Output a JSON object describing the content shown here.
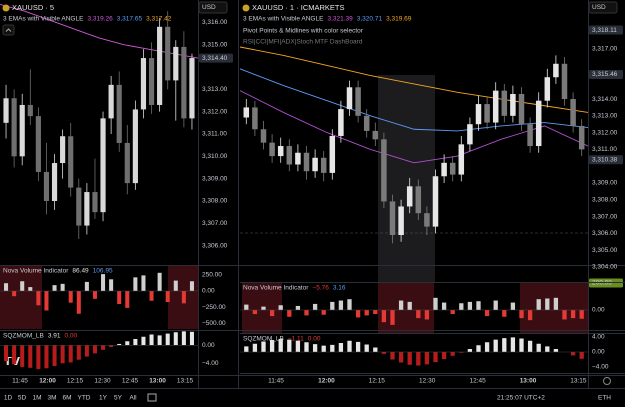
{
  "panes": [
    {
      "symbol": "XAUUSD · 5",
      "currency": "USD",
      "ema_title": "3 EMAs with Visible ANGLE",
      "ema_values": [
        {
          "text": "3,319.26",
          "color": "#d05ad6"
        },
        {
          "text": "3,317.65",
          "color": "#5b9cf6"
        },
        {
          "text": "3,317.42",
          "color": "#f5a623"
        }
      ],
      "extra_indicators": [],
      "price": {
        "ylim": [
          3305.0,
          3317.0
        ],
        "yticks": [
          {
            "value": 3306,
            "label": "3,306.00"
          },
          {
            "value": 3307,
            "label": "3,307.00"
          },
          {
            "value": 3308,
            "label": "3,308.00"
          },
          {
            "value": 3309,
            "label": "3,309.00"
          },
          {
            "value": 3310,
            "label": "3,310.00"
          },
          {
            "value": 3311,
            "label": "3,311.00"
          },
          {
            "value": 3312,
            "label": "3,312.00"
          },
          {
            "value": 3313,
            "label": "3,313.00"
          },
          {
            "value": 3315,
            "label": "3,315.00"
          },
          {
            "value": 3316,
            "label": "3,316.00"
          }
        ],
        "price_labels": [
          {
            "value": 3314.4,
            "label": "3,314.40",
            "bg": "#2a2e39"
          }
        ],
        "colors": {
          "up": "#d9d9d9",
          "down": "#6f6f6f"
        },
        "candles": [
          [
            3311.5,
            3313.2,
            3310.8,
            3312.6
          ],
          [
            3312.6,
            3313.0,
            3309.5,
            3310.0
          ],
          [
            3310.0,
            3312.8,
            3309.6,
            3312.3
          ],
          [
            3312.3,
            3313.9,
            3311.4,
            3311.8
          ],
          [
            3311.8,
            3312.2,
            3308.9,
            3309.3
          ],
          [
            3309.3,
            3310.6,
            3307.4,
            3308.0
          ],
          [
            3308.0,
            3310.1,
            3307.6,
            3309.7
          ],
          [
            3309.7,
            3311.2,
            3309.0,
            3310.9
          ],
          [
            3310.9,
            3311.5,
            3308.2,
            3308.6
          ],
          [
            3308.6,
            3309.0,
            3306.3,
            3306.9
          ],
          [
            3306.9,
            3308.8,
            3306.5,
            3308.4
          ],
          [
            3308.4,
            3309.9,
            3307.2,
            3307.5
          ],
          [
            3307.5,
            3312.0,
            3307.1,
            3311.7
          ],
          [
            3311.7,
            3313.6,
            3311.0,
            3313.2
          ],
          [
            3313.2,
            3313.8,
            3310.2,
            3310.6
          ],
          [
            3310.6,
            3311.4,
            3308.3,
            3308.8
          ],
          [
            3308.8,
            3312.5,
            3308.5,
            3312.1
          ],
          [
            3312.1,
            3314.8,
            3311.7,
            3314.4
          ],
          [
            3314.4,
            3315.1,
            3311.9,
            3312.3
          ],
          [
            3312.3,
            3316.2,
            3312.0,
            3315.8
          ],
          [
            3315.8,
            3316.5,
            3313.0,
            3313.4
          ],
          [
            3313.4,
            3315.2,
            3311.6,
            3314.9
          ],
          [
            3314.9,
            3315.6,
            3311.3,
            3311.7
          ],
          [
            3311.7,
            3314.6,
            3311.2,
            3314.4
          ]
        ],
        "emas": [
          {
            "color": "#d05ad6",
            "values": [
              3316.8,
              3316.5,
              3316.1,
              3315.7,
              3315.3,
              3315.0,
              3314.8,
              3314.6,
              3314.4
            ]
          }
        ]
      },
      "volume": {
        "name": "Nova Volume Indicator",
        "readouts": [
          {
            "text": "86.49",
            "color": "#e0e0e0"
          },
          {
            "text": "106.95",
            "color": "#5b9cf6"
          }
        ],
        "ylim": [
          -600,
          400
        ],
        "yticks": [
          {
            "value": 250,
            "label": "250.00"
          },
          {
            "value": 0,
            "label": "0.00"
          },
          {
            "value": -250,
            "label": "−250.00"
          },
          {
            "value": -500,
            "label": "−500.00"
          }
        ],
        "colors": {
          "up": "#cfcfcf",
          "down": "#e53935"
        },
        "values": [
          120,
          -80,
          150,
          60,
          -220,
          -300,
          90,
          110,
          -180,
          -350,
          140,
          -120,
          260,
          180,
          -200,
          -260,
          210,
          240,
          -150,
          280,
          -170,
          160,
          -190,
          150
        ]
      },
      "sqz": {
        "name": "SQZMOM_LB",
        "readouts": [
          {
            "text": "3.91",
            "color": "#e0e0e0"
          },
          {
            "text": "0.00",
            "color": "#e53935"
          }
        ],
        "ylim": [
          -6.6,
          3.4
        ],
        "yticks": [
          {
            "value": 0,
            "label": "0.00"
          },
          {
            "value": -4,
            "label": "−4.00"
          }
        ],
        "colors": {
          "up": "#e6e6e6",
          "down": "#b71c1c"
        },
        "values": [
          -3.5,
          -4.2,
          -4.8,
          -5.0,
          -5.3,
          -5.1,
          -4.6,
          -4.0,
          -3.8,
          -3.2,
          -2.5,
          -1.8,
          -1.0,
          -0.4,
          0.3,
          0.9,
          1.4,
          1.9,
          2.4,
          2.2,
          2.6,
          2.9,
          3.1,
          3.0
        ]
      },
      "times": [
        "11:45",
        "12:00",
        "12:15",
        "12:30",
        "12:45",
        "13:00",
        "13:15"
      ]
    },
    {
      "symbol": "XAUUSD · 1 · ICMARKETS",
      "currency": "USD",
      "ema_title": "3 EMAs with Visible ANGLE",
      "ema_values": [
        {
          "text": "3,321.39",
          "color": "#d05ad6"
        },
        {
          "text": "3,320.71",
          "color": "#5b9cf6"
        },
        {
          "text": "3,319.69",
          "color": "#f5a623"
        }
      ],
      "extra_indicators": [
        "Pivot Points & Midlines with color selector",
        "RSI|CCI|MFI|ADX|Stoch MTF DashBoard"
      ],
      "price": {
        "ylim": [
          3303.1,
          3319.9
        ],
        "yticks": [
          {
            "value": 3304,
            "label": "3,304.00"
          },
          {
            "value": 3305,
            "label": "3,305.00"
          },
          {
            "value": 3306,
            "label": "3,306.00"
          },
          {
            "value": 3307,
            "label": "3,307.00"
          },
          {
            "value": 3308,
            "label": "3,308.00"
          },
          {
            "value": 3309,
            "label": "3,309.00"
          },
          {
            "value": 3311,
            "label": "3,311.00"
          },
          {
            "value": 3312,
            "label": "3,312.00"
          },
          {
            "value": 3313,
            "label": "3,313.00"
          },
          {
            "value": 3314,
            "label": "3,314.00"
          },
          {
            "value": 3317,
            "label": "3,317.00"
          }
        ],
        "price_labels": [
          {
            "value": 3318.11,
            "label": "3,318.11",
            "bg": "#2a2e39"
          },
          {
            "value": 3315.46,
            "label": "3,315.46",
            "bg": "#2a2e39"
          },
          {
            "value": 3310.38,
            "label": "3,310.38",
            "bg": "#2a2e39"
          }
        ],
        "colors": {
          "up": "#e6e6e6",
          "down": "#7a7a7a"
        },
        "candles": [
          [
            3312.9,
            3314.0,
            3312.5,
            3313.5
          ],
          [
            3313.5,
            3313.9,
            3311.8,
            3312.2
          ],
          [
            3312.2,
            3312.7,
            3311.0,
            3311.4
          ],
          [
            3311.4,
            3311.9,
            3310.2,
            3310.6
          ],
          [
            3310.6,
            3311.7,
            3310.2,
            3311.2
          ],
          [
            3311.2,
            3311.6,
            3309.7,
            3310.1
          ],
          [
            3310.1,
            3311.3,
            3309.7,
            3310.8
          ],
          [
            3310.8,
            3311.2,
            3309.2,
            3309.7
          ],
          [
            3309.7,
            3311.0,
            3309.3,
            3310.5
          ],
          [
            3310.5,
            3310.9,
            3309.1,
            3309.6
          ],
          [
            3309.6,
            3312.2,
            3309.2,
            3311.8
          ],
          [
            3311.8,
            3313.9,
            3311.4,
            3313.4
          ],
          [
            3313.4,
            3315.1,
            3313.0,
            3314.7
          ],
          [
            3314.7,
            3315.1,
            3312.6,
            3313.0
          ],
          [
            3313.0,
            3313.4,
            3311.7,
            3312.1
          ],
          [
            3312.1,
            3312.6,
            3311.2,
            3311.6
          ],
          [
            3311.6,
            3312.0,
            3307.5,
            3307.9
          ],
          [
            3307.9,
            3308.3,
            3305.4,
            3305.9
          ],
          [
            3305.9,
            3308.0,
            3305.5,
            3307.6
          ],
          [
            3307.6,
            3309.3,
            3307.2,
            3308.8
          ],
          [
            3308.8,
            3309.2,
            3306.8,
            3307.2
          ],
          [
            3307.2,
            3307.6,
            3305.9,
            3306.4
          ],
          [
            3306.4,
            3309.8,
            3306.0,
            3309.4
          ],
          [
            3309.4,
            3310.7,
            3309.0,
            3310.2
          ],
          [
            3310.2,
            3310.6,
            3309.1,
            3309.5
          ],
          [
            3309.5,
            3311.8,
            3309.1,
            3311.3
          ],
          [
            3311.3,
            3312.9,
            3310.9,
            3312.5
          ],
          [
            3312.5,
            3314.2,
            3312.1,
            3313.7
          ],
          [
            3313.7,
            3314.1,
            3312.2,
            3312.6
          ],
          [
            3312.6,
            3315.0,
            3312.2,
            3314.5
          ],
          [
            3314.5,
            3314.9,
            3312.6,
            3313.0
          ],
          [
            3313.0,
            3314.8,
            3312.6,
            3314.3
          ],
          [
            3314.3,
            3314.7,
            3312.1,
            3312.5
          ],
          [
            3312.5,
            3312.9,
            3310.8,
            3311.2
          ],
          [
            3311.2,
            3314.4,
            3310.8,
            3313.9
          ],
          [
            3313.9,
            3315.8,
            3313.5,
            3315.3
          ],
          [
            3315.3,
            3316.6,
            3314.9,
            3316.1
          ],
          [
            3316.1,
            3316.5,
            3313.6,
            3314.0
          ],
          [
            3314.0,
            3314.4,
            3312.0,
            3312.4
          ],
          [
            3312.4,
            3312.8,
            3310.6,
            3311.0
          ]
        ],
        "emas": [
          {
            "color": "#f5a623",
            "values": [
              3317.1,
              3316.6,
              3316.0,
              3315.4,
              3314.9,
              3314.4,
              3314.0,
              3313.6,
              3313.2
            ]
          },
          {
            "color": "#5b9cf6",
            "values": [
              3315.8,
              3314.8,
              3313.9,
              3313.0,
              3312.2,
              3312.1,
              3312.4,
              3312.6,
              3312.3
            ]
          },
          {
            "color": "#b04fd0",
            "values": [
              3314.5,
              3313.2,
              3312.0,
              3311.0,
              3310.2,
              3310.6,
              3311.6,
              3312.4,
              3311.2
            ]
          }
        ]
      },
      "volume": {
        "name": "Nova Volume Indicator",
        "readouts": [
          {
            "text": "−5.76",
            "color": "#e53935"
          },
          {
            "text": "3.16",
            "color": "#5b9cf6"
          }
        ],
        "ylim": [
          -170,
          207
        ],
        "yticks": [
          {
            "value": 0,
            "label": "0.00"
          }
        ],
        "price_labels": [
          {
            "value": 200,
            "label": "200.00",
            "bg": "#6b8e23"
          }
        ],
        "colors": {
          "up": "#cfcfcf",
          "down": "#e53935"
        },
        "values": [
          40,
          -30,
          25,
          -45,
          35,
          -50,
          30,
          -40,
          45,
          -35,
          60,
          70,
          80,
          -55,
          -40,
          -30,
          -90,
          -110,
          70,
          60,
          -60,
          -70,
          90,
          55,
          -30,
          50,
          60,
          65,
          -45,
          70,
          -50,
          55,
          -60,
          -75,
          80,
          85,
          90,
          -70,
          -60,
          -65
        ]
      },
      "sqz": {
        "name": "SQZMOM_LB",
        "readouts": [
          {
            "text": "−1.11",
            "color": "#e53935"
          },
          {
            "text": "0.00",
            "color": "#e53935"
          }
        ],
        "ylim": [
          -5.6,
          5.07
        ],
        "yticks": [
          {
            "value": 4,
            "label": "4.00"
          },
          {
            "value": 0,
            "label": "0.00"
          },
          {
            "value": -4,
            "label": "−4.00"
          }
        ],
        "colors": {
          "up": "#e6e6e6",
          "down": "#b71c1c"
        },
        "values": [
          1.5,
          2.2,
          2.8,
          3.2,
          3.5,
          3.3,
          3.0,
          2.6,
          2.1,
          1.7,
          1.9,
          2.4,
          3.0,
          2.7,
          2.0,
          1.2,
          -0.5,
          -2.0,
          -2.8,
          -3.4,
          -3.6,
          -3.3,
          -2.7,
          -1.9,
          -1.0,
          -0.2,
          0.8,
          1.8,
          2.6,
          3.3,
          3.7,
          3.9,
          3.6,
          3.0,
          2.2,
          1.5,
          0.8,
          0.0,
          -0.9,
          -1.8
        ]
      },
      "times": [
        "11:45",
        "12:00",
        "12:15",
        "12:30",
        "12:45",
        "13:00",
        "13:15"
      ]
    }
  ],
  "bottom": {
    "ranges": [
      "1D",
      "5D",
      "1M",
      "3M",
      "6M",
      "YTD",
      "1Y",
      "5Y",
      "All"
    ],
    "clock": "21:25:07 UTC+2",
    "session": "ETH"
  }
}
